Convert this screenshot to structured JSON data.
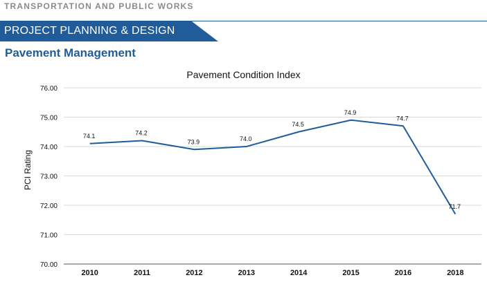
{
  "header": {
    "department": "TRANSPORTATION AND PUBLIC WORKS",
    "banner": "PROJECT PLANNING & DESIGN",
    "subheading": "Pavement Management"
  },
  "colors": {
    "brand": "#1f5c99",
    "line": "#1f5c99"
  },
  "chart_data": {
    "type": "line",
    "title": "Pavement Condition Index",
    "xlabel": "",
    "ylabel": "PCI Rating",
    "categories": [
      "2010",
      "2011",
      "2012",
      "2013",
      "2014",
      "2015",
      "2016",
      "2018"
    ],
    "values": [
      74.1,
      74.2,
      73.9,
      74.0,
      74.5,
      74.9,
      74.7,
      71.7
    ],
    "data_labels": [
      "74.1",
      "74.2",
      "73.9",
      "74.0",
      "74.5",
      "74.9",
      "74.7",
      "71.7"
    ],
    "ylim": [
      70,
      76
    ],
    "yticks": [
      "70.00",
      "71.00",
      "72.00",
      "73.00",
      "74.00",
      "75.00",
      "76.00"
    ],
    "grid": true,
    "legend": "none"
  }
}
